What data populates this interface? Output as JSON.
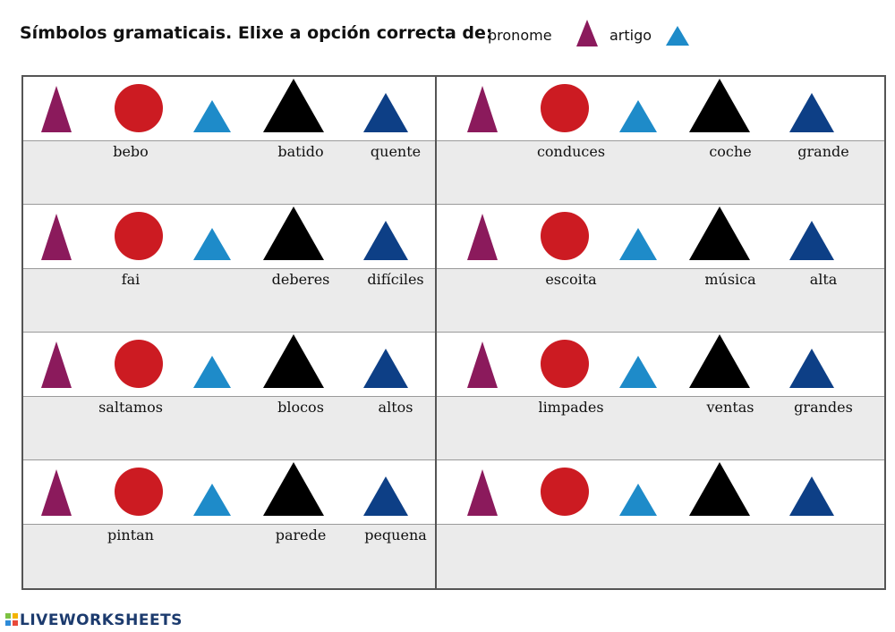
{
  "header": {
    "instruction": "Símbolos gramaticais. Elixe a opción correcta de:",
    "legend": [
      {
        "label": "pronome",
        "icon": "purple-triangle-icon"
      },
      {
        "label": "artigo",
        "icon": "light-blue-triangle-icon"
      }
    ]
  },
  "colors": {
    "pronoun": "#8b1a5c",
    "verb": "#cc1b22",
    "article": "#1e8bc9",
    "noun": "#000000",
    "adjective": "#0d3f86"
  },
  "exercises": [
    {
      "words": [
        "bebo",
        "batido",
        "quente"
      ]
    },
    {
      "words": [
        "conduces",
        "coche",
        "grande"
      ]
    },
    {
      "words": [
        "fai",
        "deberes",
        "difíciles"
      ]
    },
    {
      "words": [
        "escoita",
        "música",
        "alta"
      ]
    },
    {
      "words": [
        "saltamos",
        "blocos",
        "altos"
      ]
    },
    {
      "words": [
        "limpades",
        "ventas",
        "grandes"
      ]
    },
    {
      "words": [
        "pintan",
        "parede",
        "pequena"
      ]
    },
    {
      "words": []
    }
  ],
  "footer": {
    "brand": "LIVEWORKSHEETS"
  }
}
